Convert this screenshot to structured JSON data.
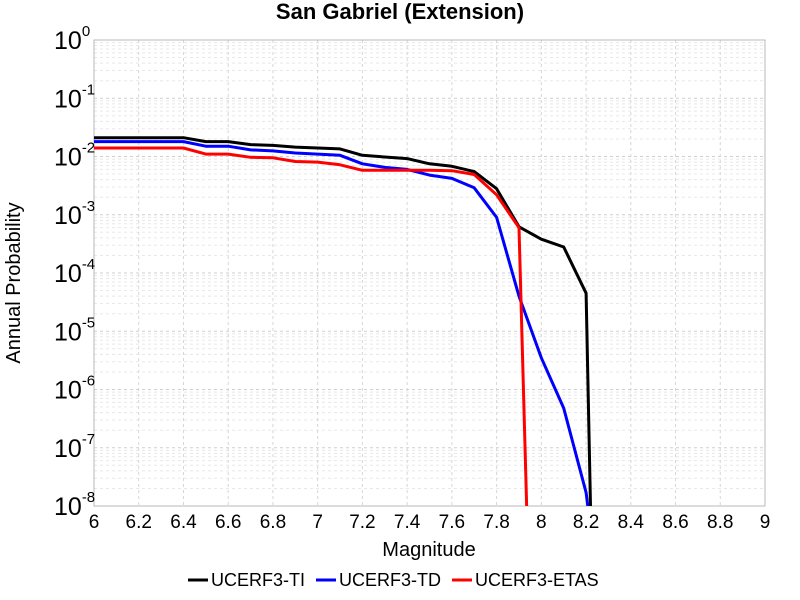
{
  "chart_data": {
    "type": "line",
    "title": "San Gabriel (Extension)",
    "xlabel": "Magnitude",
    "ylabel": "Annual Probability",
    "xlim": [
      6,
      9
    ],
    "ylim": [
      1e-08,
      1
    ],
    "yscale": "log",
    "grid": true,
    "legend_position": "bottom-center",
    "xticks": [
      "6",
      "6.2",
      "6.4",
      "6.6",
      "6.8",
      "7",
      "7.2",
      "7.4",
      "7.6",
      "7.8",
      "8",
      "8.2",
      "8.4",
      "8.6",
      "8.8",
      "9"
    ],
    "yticks": [
      {
        "base": "10",
        "exp": "0"
      },
      {
        "base": "10",
        "exp": "-1"
      },
      {
        "base": "10",
        "exp": "-2"
      },
      {
        "base": "10",
        "exp": "-3"
      },
      {
        "base": "10",
        "exp": "-4"
      },
      {
        "base": "10",
        "exp": "-5"
      },
      {
        "base": "10",
        "exp": "-6"
      },
      {
        "base": "10",
        "exp": "-7"
      },
      {
        "base": "10",
        "exp": "-8"
      }
    ],
    "series": [
      {
        "name": "UCERF3-TI",
        "color": "#000000",
        "x": [
          6.0,
          6.1,
          6.2,
          6.3,
          6.4,
          6.5,
          6.6,
          6.7,
          6.8,
          6.9,
          7.0,
          7.1,
          7.2,
          7.3,
          7.4,
          7.5,
          7.6,
          7.7,
          7.8,
          7.9,
          8.0,
          8.1,
          8.2,
          8.22,
          8.23
        ],
        "y": [
          0.021,
          0.021,
          0.021,
          0.021,
          0.021,
          0.018,
          0.018,
          0.016,
          0.0155,
          0.0145,
          0.014,
          0.0135,
          0.0105,
          0.0098,
          0.0092,
          0.0075,
          0.0068,
          0.0055,
          0.0028,
          0.00062,
          0.00038,
          0.00028,
          4.5e-05,
          9.9e-09,
          2e-09
        ]
      },
      {
        "name": "UCERF3-TD",
        "color": "#0000ff",
        "x": [
          6.0,
          6.1,
          6.2,
          6.3,
          6.4,
          6.5,
          6.6,
          6.7,
          6.8,
          6.9,
          7.0,
          7.1,
          7.2,
          7.3,
          7.4,
          7.5,
          7.6,
          7.7,
          7.8,
          7.9,
          8.0,
          8.1,
          8.2,
          8.21
        ],
        "y": [
          0.018,
          0.018,
          0.018,
          0.018,
          0.018,
          0.015,
          0.015,
          0.013,
          0.0125,
          0.0115,
          0.011,
          0.0105,
          0.0075,
          0.0065,
          0.006,
          0.0048,
          0.0042,
          0.0029,
          0.0009,
          4e-05,
          3.5e-06,
          4.8e-07,
          1.7e-08,
          8.5e-09
        ]
      },
      {
        "name": "UCERF3-ETAS",
        "color": "#ff0000",
        "x": [
          6.0,
          6.1,
          6.2,
          6.3,
          6.4,
          6.5,
          6.6,
          6.7,
          6.8,
          6.9,
          7.0,
          7.1,
          7.2,
          7.3,
          7.4,
          7.5,
          7.6,
          7.7,
          7.8,
          7.9,
          7.935
        ],
        "y": [
          0.014,
          0.014,
          0.014,
          0.014,
          0.014,
          0.011,
          0.011,
          0.0097,
          0.0095,
          0.0082,
          0.008,
          0.0072,
          0.0058,
          0.0058,
          0.0058,
          0.0058,
          0.0057,
          0.0049,
          0.0022,
          0.0006,
          8e-09
        ]
      }
    ]
  }
}
